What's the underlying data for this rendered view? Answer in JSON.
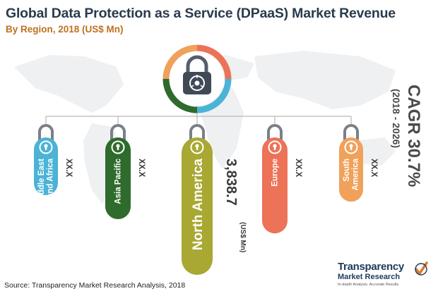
{
  "title": "Global Data Protection as a Service (DPaaS) Market Revenue",
  "subtitle": "By Region, 2018 (US$ Mn)",
  "source": "Source: Transparency Market Research Analysis, 2018",
  "cagr": {
    "label": "CAGR 30.7%",
    "period": "(2018 - 2026)"
  },
  "logo": {
    "main": "Transparency",
    "sub": "Market Research",
    "tagline": "In-depth Analysis. Accurate Results"
  },
  "colors": {
    "middle_east_africa": "#4ab3d6",
    "asia_pacific": "#2f6b2c",
    "north_america": "#a8a833",
    "europe": "#ec7258",
    "south_america": "#f0a15a",
    "title": "#2a3b4c",
    "subtitle": "#c0701e"
  },
  "chart_data": {
    "type": "bar",
    "title": "Global Data Protection as a Service (DPaaS) Market Revenue",
    "subtitle": "By Region, 2018 (US$ Mn)",
    "categories": [
      "Middle East and Africa",
      "Asia Pacific",
      "North America",
      "Europe",
      "South America"
    ],
    "category_lines": [
      [
        "Middle East",
        "and Africa"
      ],
      [
        "Asia Pacific"
      ],
      [
        "North America"
      ],
      [
        "Europe"
      ],
      [
        "South",
        "America"
      ]
    ],
    "value_labels": [
      "XX.X",
      "XX.X",
      "3,838.7",
      "XX.X",
      "XX.X"
    ],
    "unit_label": "(US$ Mn)",
    "values": [
      null,
      null,
      3838.7,
      null,
      null
    ],
    "relative_heights": [
      0.27,
      0.49,
      1.0,
      0.62,
      0.33
    ],
    "grid": false,
    "legend": "none"
  }
}
